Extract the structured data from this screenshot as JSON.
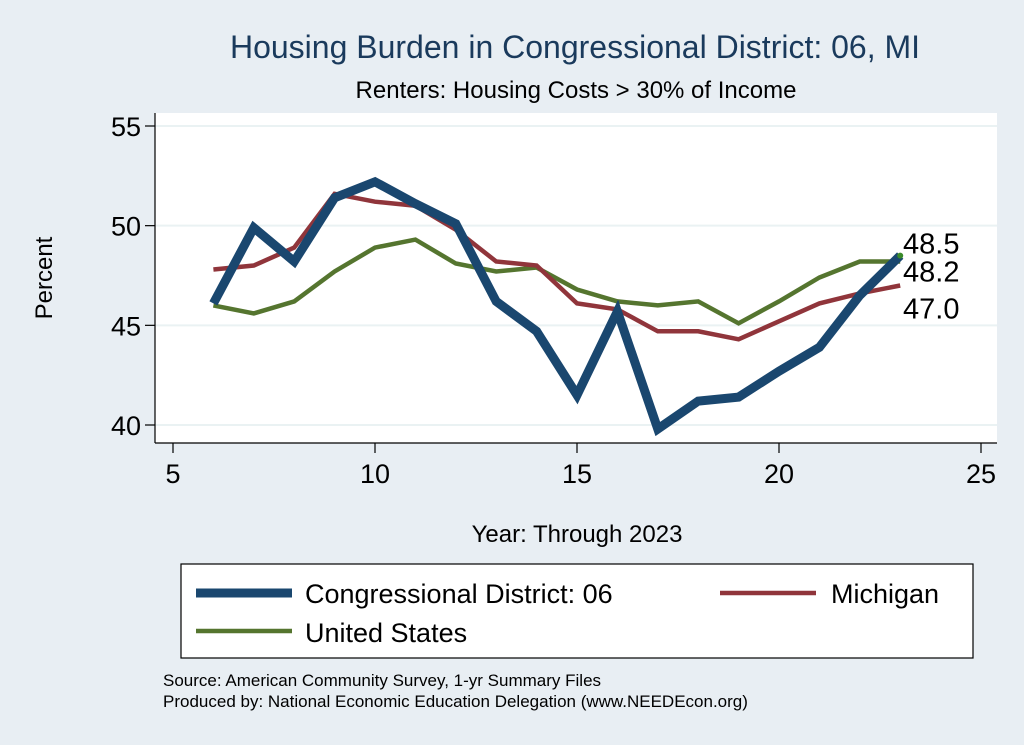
{
  "chart_data": {
    "type": "line",
    "title": "Housing Burden in Congressional District:  06, MI",
    "subtitle": "Renters: Housing Costs > 30% of Income",
    "xlabel": "Year: Through 2023",
    "ylabel": "Percent",
    "xlim": [
      5,
      25
    ],
    "ylim": [
      39.5,
      55.5
    ],
    "xticks": [
      5,
      10,
      15,
      20,
      25
    ],
    "yticks": [
      40,
      45,
      50,
      55
    ],
    "grid": true,
    "series": [
      {
        "name": "Congressional District:  06",
        "color": "#1a476f",
        "line_weight": "thick",
        "x": [
          6,
          7,
          8,
          9,
          10,
          11,
          12,
          13,
          14,
          15,
          16,
          17,
          18,
          19,
          20,
          21,
          22,
          23
        ],
        "y": [
          46.1,
          49.9,
          48.2,
          51.4,
          52.2,
          51.1,
          50.1,
          46.2,
          44.7,
          41.5,
          45.7,
          39.8,
          41.2,
          41.4,
          42.7,
          43.9,
          46.5,
          48.5
        ],
        "end_label": "48.5"
      },
      {
        "name": "Michigan",
        "color": "#90353b",
        "line_weight": "medium",
        "x": [
          6,
          7,
          8,
          9,
          10,
          11,
          12,
          13,
          14,
          15,
          16,
          17,
          18,
          19,
          20,
          21,
          22,
          23
        ],
        "y": [
          47.8,
          48.0,
          48.9,
          51.6,
          51.2,
          51.0,
          49.8,
          48.2,
          48.0,
          46.1,
          45.8,
          44.7,
          44.7,
          44.3,
          45.2,
          46.1,
          46.6,
          47.0
        ],
        "end_label": "47.0"
      },
      {
        "name": "United States",
        "color": "#55752f",
        "line_weight": "medium",
        "x": [
          6,
          7,
          8,
          9,
          10,
          11,
          12,
          13,
          14,
          15,
          16,
          17,
          18,
          19,
          20,
          21,
          22,
          23
        ],
        "y": [
          46.0,
          45.6,
          46.2,
          47.7,
          48.9,
          49.3,
          48.1,
          47.7,
          47.9,
          46.8,
          46.2,
          46.0,
          46.2,
          45.1,
          46.2,
          47.4,
          48.2,
          48.2
        ],
        "end_label": "48.2"
      }
    ],
    "legend": {
      "placement": "bottom",
      "entries": [
        "Congressional District:  06",
        "Michigan",
        "United States"
      ]
    },
    "source_lines": [
      "Source: American Community Survey, 1-yr Summary Files",
      "Produced by: National Economic Education Delegation (www.NEEDEcon.org)"
    ]
  }
}
